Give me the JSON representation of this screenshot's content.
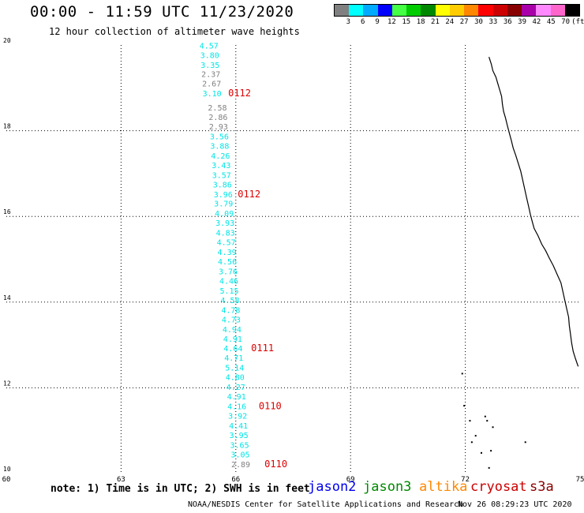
{
  "header": {
    "title": "00:00 - 11:59 UTC 11/23/2020",
    "subtitle": "12 hour collection of altimeter wave heights"
  },
  "legend": {
    "colors": [
      "#808080",
      "#00ffff",
      "#00aaff",
      "#0000ff",
      "#44ff44",
      "#00cc00",
      "#008800",
      "#ffff00",
      "#ffcc00",
      "#ff8800",
      "#ff0000",
      "#cc0000",
      "#880000",
      "#aa00aa",
      "#ff88ff",
      "#ff66cc",
      "#000000"
    ],
    "labels": [
      "3",
      "6",
      "9",
      "12",
      "15",
      "18",
      "21",
      "24",
      "27",
      "30",
      "33",
      "36",
      "39",
      "42",
      "45",
      "70",
      "(ft)"
    ]
  },
  "chart_data": {
    "type": "scatter",
    "title": "12 hour collection of altimeter wave heights",
    "xlim": [
      60,
      75
    ],
    "ylim": [
      10,
      20
    ],
    "x_ticks": [
      "60",
      "63",
      "66",
      "69",
      "72",
      "75"
    ],
    "y_ticks": [
      "10",
      "12",
      "14",
      "16",
      "18",
      "20"
    ],
    "grid": true,
    "points": [
      {
        "lon": 65.05,
        "lat": 19.92,
        "label": "4.57",
        "color": "#00e5e5"
      },
      {
        "lon": 65.07,
        "lat": 19.7,
        "label": "3.80",
        "color": "#00e5e5"
      },
      {
        "lon": 65.08,
        "lat": 19.47,
        "label": "3.35",
        "color": "#00e5e5"
      },
      {
        "lon": 65.1,
        "lat": 19.25,
        "label": "2.37",
        "color": "#808080"
      },
      {
        "lon": 65.12,
        "lat": 19.03,
        "label": "2.67",
        "color": "#808080"
      },
      {
        "lon": 65.13,
        "lat": 18.8,
        "label": "3.10",
        "color": "#00e5e5"
      },
      {
        "lon": 65.27,
        "lat": 18.47,
        "label": "2.58",
        "color": "#808080"
      },
      {
        "lon": 65.29,
        "lat": 18.25,
        "label": "2.86",
        "color": "#808080"
      },
      {
        "lon": 65.3,
        "lat": 18.03,
        "label": "2.93",
        "color": "#808080"
      },
      {
        "lon": 65.32,
        "lat": 17.8,
        "label": "3.56",
        "color": "#00e5e5"
      },
      {
        "lon": 65.33,
        "lat": 17.58,
        "label": "3.88",
        "color": "#00e5e5"
      },
      {
        "lon": 65.35,
        "lat": 17.35,
        "label": "4.26",
        "color": "#00e5e5"
      },
      {
        "lon": 65.37,
        "lat": 17.13,
        "label": "3.43",
        "color": "#00e5e5"
      },
      {
        "lon": 65.38,
        "lat": 16.9,
        "label": "3.57",
        "color": "#00e5e5"
      },
      {
        "lon": 65.4,
        "lat": 16.68,
        "label": "3.86",
        "color": "#00e5e5"
      },
      {
        "lon": 65.42,
        "lat": 16.45,
        "label": "3.96",
        "color": "#00e5e5"
      },
      {
        "lon": 65.43,
        "lat": 16.23,
        "label": "3.79",
        "color": "#00e5e5"
      },
      {
        "lon": 65.45,
        "lat": 16.0,
        "label": "4.09",
        "color": "#00e5e5"
      },
      {
        "lon": 65.47,
        "lat": 15.78,
        "label": "3.93",
        "color": "#00e5e5"
      },
      {
        "lon": 65.48,
        "lat": 15.55,
        "label": "4.83",
        "color": "#00e5e5"
      },
      {
        "lon": 65.5,
        "lat": 15.33,
        "label": "4.57",
        "color": "#00e5e5"
      },
      {
        "lon": 65.52,
        "lat": 15.1,
        "label": "4.39",
        "color": "#00e5e5"
      },
      {
        "lon": 65.53,
        "lat": 14.88,
        "label": "4.56",
        "color": "#00e5e5"
      },
      {
        "lon": 65.55,
        "lat": 14.65,
        "label": "3.76",
        "color": "#00e5e5"
      },
      {
        "lon": 65.57,
        "lat": 14.43,
        "label": "4.46",
        "color": "#00e5e5"
      },
      {
        "lon": 65.58,
        "lat": 14.2,
        "label": "5.15",
        "color": "#00e5e5"
      },
      {
        "lon": 65.6,
        "lat": 13.98,
        "label": "4.58",
        "color": "#00e5e5"
      },
      {
        "lon": 65.62,
        "lat": 13.75,
        "label": "4.78",
        "color": "#00e5e5"
      },
      {
        "lon": 65.63,
        "lat": 13.53,
        "label": "4.73",
        "color": "#00e5e5"
      },
      {
        "lon": 65.65,
        "lat": 13.3,
        "label": "4.94",
        "color": "#00e5e5"
      },
      {
        "lon": 65.67,
        "lat": 13.08,
        "label": "4.91",
        "color": "#00e5e5"
      },
      {
        "lon": 65.68,
        "lat": 12.85,
        "label": "4.64",
        "color": "#00e5e5"
      },
      {
        "lon": 65.7,
        "lat": 12.63,
        "label": "4.71",
        "color": "#00e5e5"
      },
      {
        "lon": 65.72,
        "lat": 12.4,
        "label": "5.14",
        "color": "#00e5e5"
      },
      {
        "lon": 65.73,
        "lat": 12.18,
        "label": "4.80",
        "color": "#00e5e5"
      },
      {
        "lon": 65.75,
        "lat": 11.95,
        "label": "4.27",
        "color": "#00e5e5"
      },
      {
        "lon": 65.77,
        "lat": 11.73,
        "label": "4.91",
        "color": "#00e5e5"
      },
      {
        "lon": 65.78,
        "lat": 11.5,
        "label": "4.16",
        "color": "#00e5e5"
      },
      {
        "lon": 65.8,
        "lat": 11.28,
        "label": "3.92",
        "color": "#00e5e5"
      },
      {
        "lon": 65.82,
        "lat": 11.05,
        "label": "4.41",
        "color": "#00e5e5"
      },
      {
        "lon": 65.83,
        "lat": 10.83,
        "label": "3.95",
        "color": "#00e5e5"
      },
      {
        "lon": 65.85,
        "lat": 10.6,
        "label": "3.65",
        "color": "#00e5e5"
      },
      {
        "lon": 65.87,
        "lat": 10.38,
        "label": "3.05",
        "color": "#00e5e5"
      },
      {
        "lon": 65.88,
        "lat": 10.15,
        "label": "2.89",
        "color": "#808080"
      }
    ],
    "pass_labels": [
      {
        "lon": 65.8,
        "lat": 18.8,
        "text": "0112",
        "color": "#dd0000"
      },
      {
        "lon": 66.05,
        "lat": 16.45,
        "text": "0112",
        "color": "#dd0000"
      },
      {
        "lon": 66.4,
        "lat": 12.85,
        "text": "0111",
        "color": "#dd0000"
      },
      {
        "lon": 66.6,
        "lat": 11.5,
        "text": "0110",
        "color": "#dd0000"
      },
      {
        "lon": 66.75,
        "lat": 10.15,
        "text": "0110",
        "color": "#dd0000"
      }
    ],
    "coastline": [
      [
        72.62,
        19.72
      ],
      [
        72.68,
        19.55
      ],
      [
        72.72,
        19.4
      ],
      [
        72.8,
        19.25
      ],
      [
        72.85,
        19.1
      ],
      [
        72.9,
        18.95
      ],
      [
        72.95,
        18.8
      ],
      [
        72.97,
        18.62
      ],
      [
        73.0,
        18.45
      ],
      [
        73.05,
        18.3
      ],
      [
        73.1,
        18.12
      ],
      [
        73.15,
        17.95
      ],
      [
        73.2,
        17.78
      ],
      [
        73.25,
        17.6
      ],
      [
        73.32,
        17.42
      ],
      [
        73.38,
        17.25
      ],
      [
        73.45,
        17.05
      ],
      [
        73.5,
        16.85
      ],
      [
        73.55,
        16.65
      ],
      [
        73.6,
        16.45
      ],
      [
        73.65,
        16.25
      ],
      [
        73.7,
        16.05
      ],
      [
        73.75,
        15.88
      ],
      [
        73.8,
        15.72
      ],
      [
        73.9,
        15.55
      ],
      [
        74.0,
        15.35
      ],
      [
        74.1,
        15.2
      ],
      [
        74.2,
        15.02
      ],
      [
        74.3,
        14.85
      ],
      [
        74.4,
        14.65
      ],
      [
        74.5,
        14.45
      ],
      [
        74.55,
        14.25
      ],
      [
        74.6,
        14.05
      ],
      [
        74.65,
        13.85
      ],
      [
        74.7,
        13.65
      ],
      [
        74.72,
        13.45
      ],
      [
        74.75,
        13.25
      ],
      [
        74.78,
        13.05
      ],
      [
        74.82,
        12.85
      ],
      [
        74.88,
        12.68
      ],
      [
        74.95,
        12.5
      ]
    ],
    "islands": [
      [
        71.9,
        12.35
      ],
      [
        71.95,
        11.6
      ],
      [
        72.1,
        11.25
      ],
      [
        72.5,
        11.35
      ],
      [
        72.7,
        11.1
      ],
      [
        72.65,
        10.55
      ],
      [
        72.6,
        10.15
      ],
      [
        72.25,
        10.9
      ],
      [
        72.15,
        10.75
      ],
      [
        72.4,
        10.5
      ],
      [
        73.55,
        10.75
      ],
      [
        72.55,
        11.25
      ]
    ]
  },
  "footer": {
    "note": "note: 1) Time is in UTC; 2) SWH is in feet",
    "satellites": [
      {
        "name": "jason2",
        "color": "#0000ee"
      },
      {
        "name": "jason3",
        "color": "#008800"
      },
      {
        "name": "altika",
        "color": "#ff8800"
      },
      {
        "name": "cryosat",
        "color": "#cc0000"
      },
      {
        "name": "s3a",
        "color": "#880000"
      }
    ],
    "credit": "NOAA/NESDIS Center for Satellite Applications and Research",
    "timestamp": "Nov 26 08:29:23 UTC 2020"
  }
}
